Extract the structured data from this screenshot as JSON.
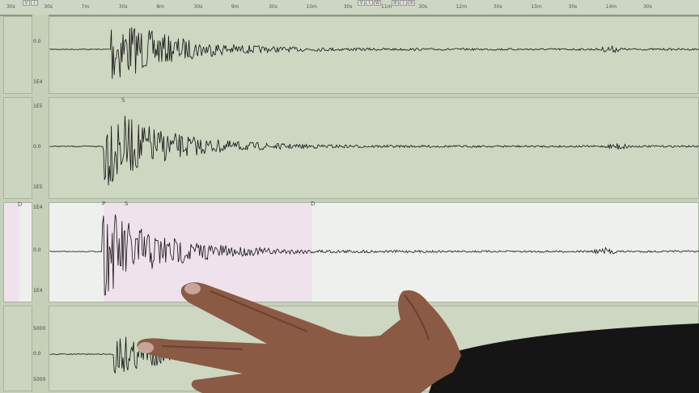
{
  "ruler": {
    "labels": [
      "30s",
      "30s",
      "7m",
      "30s",
      "8m",
      "30s",
      "9m",
      "30s",
      "10m",
      "30s",
      "11m",
      "30s",
      "12m",
      "30s",
      "13m",
      "30s",
      "14m",
      "30s"
    ],
    "buttons": [
      "V",
      "I",
      "V",
      "I",
      "W",
      "III",
      "I",
      "III"
    ]
  },
  "panels": [
    {
      "top_label": "",
      "zero_label": "0.0",
      "bottom_label": "1E4",
      "markers": []
    },
    {
      "top_label": "1E5",
      "zero_label": "0.0",
      "bottom_label": "1E5",
      "markers": [
        "S"
      ]
    },
    {
      "top_label": "1E4",
      "zero_label": "0.0",
      "bottom_label": "1E4",
      "markers": [
        "P",
        "S",
        "D"
      ],
      "side_marker": "D"
    },
    {
      "top_label": "5000",
      "zero_label": "0.0",
      "bottom_label": "5000",
      "markers": []
    }
  ],
  "colors": {
    "screen": "#c6cfb8",
    "highlight": "#efe2ec",
    "selected_panel": "#eef0ee",
    "trace": "#111111",
    "skin": "#8a5a45",
    "sleeve": "#1a1a1a"
  }
}
